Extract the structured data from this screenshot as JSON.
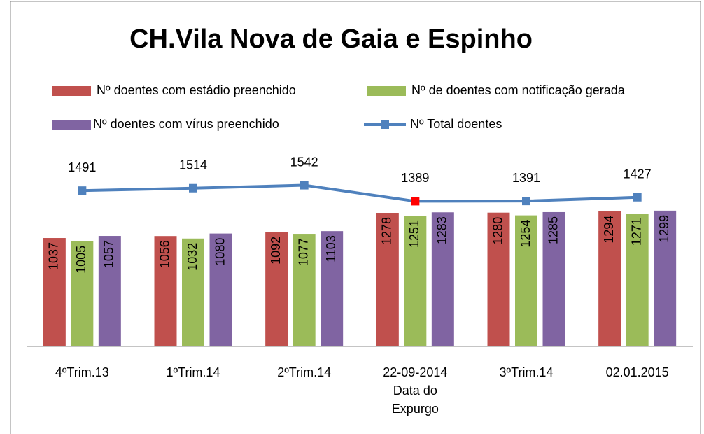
{
  "chart_data": {
    "type": "bar-line",
    "title": "CH.Vila Nova de Gaia e Espinho",
    "categories": [
      "4ºTrim.13",
      "1ºTrim.14",
      "2ºTrim.14",
      "22-09-2014 Data do Expurgo",
      "3ºTrim.14",
      "02.01.2015"
    ],
    "series": [
      {
        "name": "Nº  doentes com estádio preenchido",
        "type": "bar",
        "color": "#c0504d",
        "values": [
          1037,
          1056,
          1092,
          1278,
          1280,
          1294
        ]
      },
      {
        "name": "Nº de doentes com notificação gerada",
        "type": "bar",
        "color": "#9bbb59",
        "values": [
          1005,
          1032,
          1077,
          1251,
          1254,
          1271
        ]
      },
      {
        "name": "Nº  doentes com vírus preenchido",
        "type": "bar",
        "color": "#8064a2",
        "values": [
          1057,
          1080,
          1103,
          1283,
          1285,
          1299
        ]
      },
      {
        "name": "Nº  Total doentes",
        "type": "line",
        "color": "#4f81bd",
        "values": [
          1491,
          1514,
          1542,
          1389,
          1391,
          1427
        ],
        "marker_colors": [
          "#4f81bd",
          "#4f81bd",
          "#4f81bd",
          "#ff0000",
          "#4f81bd",
          "#4f81bd"
        ]
      }
    ],
    "ylim": [
      0,
      1800
    ]
  }
}
